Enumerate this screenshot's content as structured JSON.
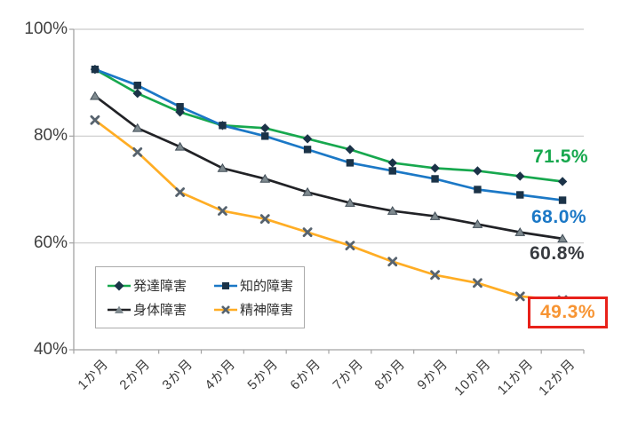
{
  "chart_data": {
    "type": "line",
    "title": "",
    "xlabel": "",
    "ylabel": "",
    "ylim": [
      40,
      100
    ],
    "grid": true,
    "legend_position": "inside-bottom-left",
    "categories": [
      "1か月",
      "2か月",
      "3か月",
      "4か月",
      "5か月",
      "6か月",
      "7か月",
      "8か月",
      "9か月",
      "10か月",
      "11か月",
      "12か月"
    ],
    "ytick_labels": [
      "100%",
      "80%",
      "60%",
      "40%"
    ],
    "ytick_values": [
      100,
      80,
      60,
      40
    ],
    "series": [
      {
        "name": "発達障害",
        "marker": "diamond",
        "color": "#17a84e",
        "marker_color": "#1b3348",
        "marker_edge": "#1b3348",
        "values": [
          92.5,
          88,
          84.5,
          82,
          81.5,
          79.5,
          77.5,
          75,
          74,
          73.5,
          72.5,
          71.5
        ]
      },
      {
        "name": "知的障害",
        "marker": "square",
        "color": "#1b78c6",
        "marker_color": "#1b3348",
        "marker_edge": "#1b3348",
        "values": [
          92.5,
          89.5,
          85.5,
          82,
          80,
          77.5,
          75,
          73.5,
          72,
          70,
          69,
          68.0
        ]
      },
      {
        "name": "身体障害",
        "marker": "triangle",
        "color": "#212226",
        "marker_color": "#7f8a8f",
        "marker_edge": "#414d57",
        "values": [
          87.5,
          81.5,
          78,
          74,
          72,
          69.5,
          67.5,
          66,
          65,
          63.5,
          62,
          60.8
        ]
      },
      {
        "name": "精神障害",
        "marker": "x",
        "color": "#ffad24",
        "marker_color": "#57636e",
        "marker_edge": "#57636e",
        "values": [
          83,
          77,
          69.5,
          66,
          64.5,
          62,
          59.5,
          56.5,
          54,
          52.5,
          50,
          49.3
        ]
      }
    ],
    "end_labels": [
      {
        "text": "71.5%",
        "color": "#17a84e",
        "boxed": false
      },
      {
        "text": "68.0%",
        "color": "#1b78c6",
        "boxed": false
      },
      {
        "text": "60.8%",
        "color": "#383b40",
        "boxed": false
      },
      {
        "text": "49.3%",
        "color": "#f79433",
        "boxed": true,
        "box_color": "#e8211a"
      }
    ],
    "colors": {
      "gridline": "#c9c9c9",
      "axis": "#a3a3a3",
      "background": "#ffffff"
    }
  }
}
